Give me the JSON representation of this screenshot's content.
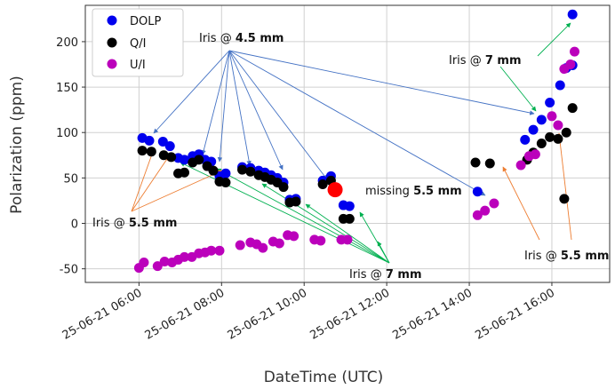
{
  "chart_data": {
    "type": "scatter",
    "xlabel": "DateTime (UTC)",
    "ylabel": "Polarization  (ppm)",
    "x_tick_labels": [
      "25-06-21 06:00",
      "25-06-21 08:00",
      "25-06-21 10:00",
      "25-06-21 12:00",
      "25-06-21 14:00",
      "25-06-21 16:00"
    ],
    "x_tick_hours": [
      6,
      8,
      10,
      12,
      14,
      16
    ],
    "xlim_hours": [
      4.7,
      17.4
    ],
    "yticks": [
      -50,
      0,
      50,
      100,
      150,
      200
    ],
    "ylim": [
      -65,
      240
    ],
    "grid": true,
    "legend_position": "top-left",
    "series": [
      {
        "name": "DOLP",
        "color": "#0000ee",
        "points": [
          [
            6.08,
            94
          ],
          [
            6.25,
            91
          ],
          [
            6.58,
            90
          ],
          [
            6.75,
            85
          ],
          [
            6.95,
            72
          ],
          [
            7.1,
            70
          ],
          [
            7.3,
            74
          ],
          [
            7.45,
            76
          ],
          [
            7.6,
            70
          ],
          [
            7.75,
            68
          ],
          [
            7.95,
            52
          ],
          [
            8.1,
            55
          ],
          [
            8.5,
            62
          ],
          [
            8.7,
            61
          ],
          [
            8.9,
            58
          ],
          [
            9.05,
            56
          ],
          [
            9.2,
            53
          ],
          [
            9.35,
            50
          ],
          [
            9.5,
            45
          ],
          [
            9.65,
            26
          ],
          [
            9.8,
            27
          ],
          [
            10.45,
            47
          ],
          [
            10.65,
            52
          ],
          [
            10.95,
            20
          ],
          [
            11.1,
            19
          ],
          [
            14.2,
            35
          ],
          [
            15.35,
            92
          ],
          [
            15.55,
            103
          ],
          [
            15.75,
            114
          ],
          [
            15.95,
            133
          ],
          [
            16.2,
            152
          ],
          [
            16.35,
            171
          ],
          [
            16.5,
            174
          ],
          [
            16.5,
            230
          ]
        ]
      },
      {
        "name": "Q/I",
        "color": "#000000",
        "points": [
          [
            6.08,
            80
          ],
          [
            6.3,
            79
          ],
          [
            6.6,
            75
          ],
          [
            6.78,
            73
          ],
          [
            6.95,
            55
          ],
          [
            7.1,
            56
          ],
          [
            7.3,
            67
          ],
          [
            7.45,
            70
          ],
          [
            7.65,
            63
          ],
          [
            7.8,
            58
          ],
          [
            7.95,
            46
          ],
          [
            8.1,
            45
          ],
          [
            8.5,
            59
          ],
          [
            8.7,
            57
          ],
          [
            8.9,
            53
          ],
          [
            9.05,
            51
          ],
          [
            9.2,
            48
          ],
          [
            9.35,
            45
          ],
          [
            9.5,
            40
          ],
          [
            9.65,
            23
          ],
          [
            9.8,
            24
          ],
          [
            10.45,
            43
          ],
          [
            10.65,
            47
          ],
          [
            10.95,
            5
          ],
          [
            11.1,
            5
          ],
          [
            14.15,
            67
          ],
          [
            14.5,
            66
          ],
          [
            15.4,
            70
          ],
          [
            15.55,
            78
          ],
          [
            15.75,
            88
          ],
          [
            15.95,
            95
          ],
          [
            16.15,
            93
          ],
          [
            16.35,
            100
          ],
          [
            16.3,
            27
          ],
          [
            16.5,
            127
          ]
        ]
      },
      {
        "name": "U/I",
        "color": "#bb00bb",
        "points": [
          [
            6.0,
            -49
          ],
          [
            6.12,
            -43
          ],
          [
            6.45,
            -47
          ],
          [
            6.62,
            -42
          ],
          [
            6.8,
            -43
          ],
          [
            6.95,
            -40
          ],
          [
            7.1,
            -37
          ],
          [
            7.28,
            -37
          ],
          [
            7.45,
            -33
          ],
          [
            7.6,
            -32
          ],
          [
            7.75,
            -30
          ],
          [
            7.95,
            -30
          ],
          [
            8.45,
            -24
          ],
          [
            8.7,
            -21
          ],
          [
            8.85,
            -23
          ],
          [
            9.0,
            -27
          ],
          [
            9.25,
            -20
          ],
          [
            9.4,
            -22
          ],
          [
            9.6,
            -13
          ],
          [
            9.75,
            -14
          ],
          [
            10.25,
            -18
          ],
          [
            10.4,
            -19
          ],
          [
            10.9,
            -18
          ],
          [
            11.05,
            -18
          ],
          [
            14.2,
            9
          ],
          [
            14.38,
            14
          ],
          [
            14.6,
            22
          ],
          [
            15.25,
            64
          ],
          [
            15.45,
            74
          ],
          [
            15.6,
            76
          ],
          [
            16.0,
            118
          ],
          [
            16.15,
            108
          ],
          [
            16.3,
            170
          ],
          [
            16.45,
            175
          ],
          [
            16.55,
            189
          ]
        ]
      }
    ],
    "special_point": {
      "x": 10.75,
      "y": 37,
      "color": "#ff0000"
    },
    "annotations": [
      {
        "id": "iris45",
        "pre": "Iris @ ",
        "bold": "4.5 mm"
      },
      {
        "id": "iris7_right",
        "pre": "Iris @ ",
        "bold": "7 mm"
      },
      {
        "id": "missing",
        "pre": "missing ",
        "bold": "5.5 mm"
      },
      {
        "id": "iris55_left",
        "pre": "Iris @ ",
        "bold": "5.5 mm"
      },
      {
        "id": "iris7_bottom",
        "pre": "Iris @ ",
        "bold": "7 mm"
      },
      {
        "id": "iris55_right",
        "pre": "Iris @ ",
        "bold": "5.5 mm"
      }
    ],
    "arrow_colors": {
      "blue": "#4472c4",
      "green": "#00b050",
      "orange": "#ed7d31"
    }
  }
}
